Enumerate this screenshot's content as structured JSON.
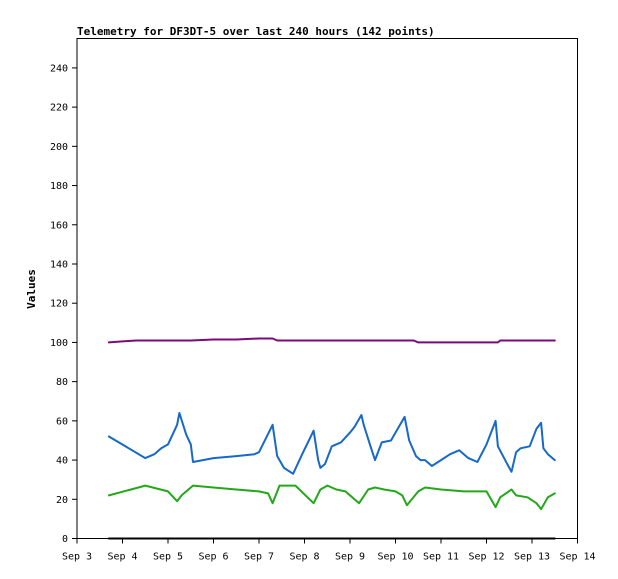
{
  "chart_data": {
    "type": "line",
    "title": "Telemetry for DF3DT-5 over last 240 hours (142 points)",
    "xlabel": "",
    "ylabel": "Values",
    "ylim": [
      0,
      255
    ],
    "yticks": [
      0,
      20,
      40,
      60,
      80,
      100,
      120,
      140,
      160,
      180,
      200,
      220,
      240
    ],
    "xlim": [
      3.0,
      14.0
    ],
    "xtick_labels": [
      "Sep 3",
      "Sep 4",
      "Sep 5",
      "Sep 6",
      "Sep 7",
      "Sep 8",
      "Sep 9",
      "Sep 10",
      "Sep 11",
      "Sep 12",
      "Sep 13",
      "Sep 14"
    ],
    "grid": false,
    "legend": false,
    "series": [
      {
        "color": "#7b0a7b",
        "x": [
          3.7,
          4.0,
          4.3,
          5.0,
          5.5,
          6.0,
          6.5,
          7.0,
          7.3,
          7.4,
          8.0,
          8.5,
          9.0,
          9.5,
          10.0,
          10.4,
          10.5,
          11.0,
          11.5,
          12.0,
          12.25,
          12.3,
          13.0,
          13.5
        ],
        "values": [
          100,
          100.5,
          101,
          101,
          101,
          101.5,
          101.5,
          102,
          102,
          101,
          101,
          101,
          101,
          101,
          101,
          101,
          100,
          100,
          100,
          100,
          100,
          101,
          101,
          101
        ]
      },
      {
        "color": "#1669c8",
        "x": [
          3.7,
          4.5,
          4.7,
          4.85,
          5.0,
          5.2,
          5.25,
          5.4,
          5.5,
          5.55,
          6.0,
          6.5,
          6.9,
          7.0,
          7.3,
          7.4,
          7.55,
          7.75,
          7.95,
          8.2,
          8.3,
          8.35,
          8.45,
          8.6,
          8.8,
          9.0,
          9.1,
          9.25,
          9.3,
          9.45,
          9.55,
          9.7,
          9.9,
          10.0,
          10.2,
          10.3,
          10.45,
          10.55,
          10.65,
          10.8,
          11.0,
          11.2,
          11.4,
          11.6,
          11.8,
          12.0,
          12.2,
          12.25,
          12.5,
          12.55,
          12.65,
          12.75,
          12.95,
          13.1,
          13.2,
          13.25,
          13.35,
          13.5
        ],
        "values": [
          52,
          41,
          43,
          46,
          48,
          58,
          64,
          53,
          48,
          39,
          41,
          42,
          43,
          44,
          58,
          42,
          36,
          33,
          43,
          55,
          40,
          36,
          38,
          47,
          49,
          54,
          57,
          63,
          58,
          47,
          40,
          49,
          50,
          54,
          62,
          50,
          42,
          40,
          40,
          37,
          40,
          43,
          45,
          41,
          39,
          48,
          60,
          47,
          36,
          34,
          44,
          46,
          47,
          56,
          59,
          46,
          43,
          40
        ]
      },
      {
        "color": "#23a81a",
        "x": [
          3.7,
          4.5,
          5.0,
          5.2,
          5.3,
          5.55,
          6.0,
          6.5,
          7.0,
          7.2,
          7.3,
          7.45,
          7.8,
          8.2,
          8.35,
          8.5,
          8.7,
          8.9,
          9.2,
          9.4,
          9.55,
          9.75,
          10.0,
          10.15,
          10.25,
          10.5,
          10.65,
          11.0,
          11.5,
          12.0,
          12.2,
          12.3,
          12.55,
          12.65,
          12.9,
          13.1,
          13.2,
          13.35,
          13.5
        ],
        "values": [
          22,
          27,
          24,
          19,
          22,
          27,
          26,
          25,
          24,
          23,
          18,
          27,
          27,
          18,
          25,
          27,
          25,
          24,
          18,
          25,
          26,
          25,
          24,
          22,
          17,
          24,
          26,
          25,
          24,
          24,
          16,
          21,
          25,
          22,
          21,
          18,
          15,
          21,
          23
        ]
      },
      {
        "color": "#000000",
        "x": [
          3.7,
          13.5
        ],
        "values": [
          0,
          0
        ]
      }
    ]
  }
}
